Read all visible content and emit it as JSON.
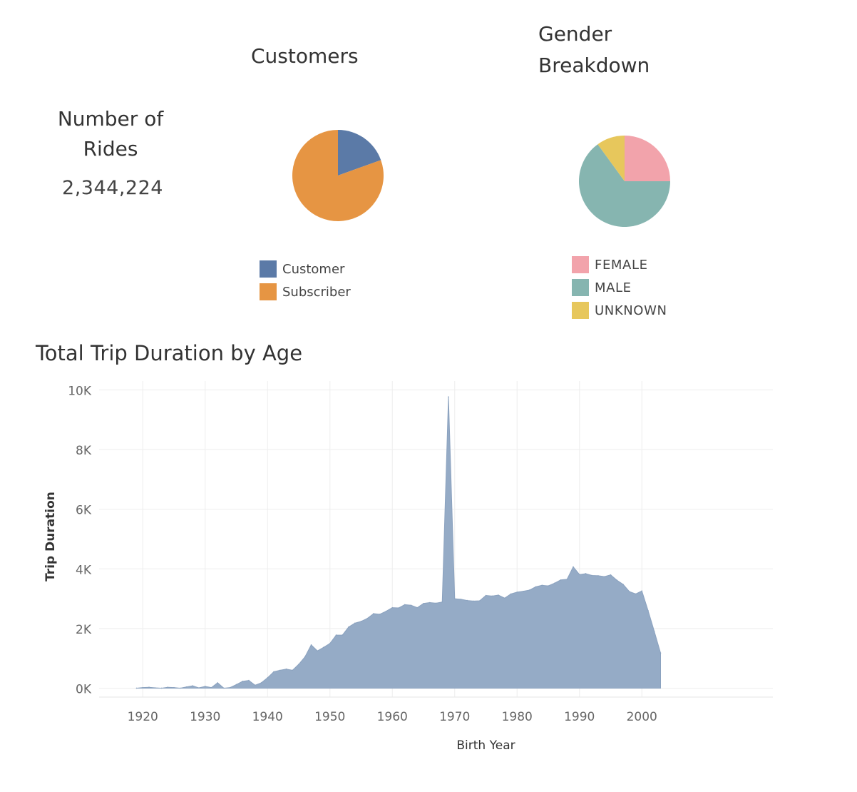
{
  "kpi": {
    "label": "Number of Rides",
    "value": "2,344,224"
  },
  "colors": {
    "customer": "#5b7aa7",
    "subscriber": "#e69543",
    "female": "#f2a3ab",
    "male": "#86b5b0",
    "unknown": "#e7c75c",
    "area": "#95abc6",
    "grid": "#eeeeee"
  },
  "chart_data": [
    {
      "type": "pie",
      "title": "Customers",
      "labels": [
        "Customer",
        "Subscriber"
      ],
      "values": [
        19.5,
        80.5
      ],
      "colors": [
        "#5b7aa7",
        "#e69543"
      ],
      "legend": "bottom"
    },
    {
      "type": "pie",
      "title": "Gender Breakdown",
      "labels": [
        "FEMALE",
        "MALE",
        "UNKNOWN"
      ],
      "values": [
        25,
        65,
        10
      ],
      "colors": [
        "#f2a3ab",
        "#86b5b0",
        "#e7c75c"
      ],
      "legend": "bottom"
    },
    {
      "type": "area",
      "title": "Total Trip Duration by Age",
      "xlabel": "Birth Year",
      "ylabel": "Trip Duration",
      "xlim": [
        1913,
        2021
      ],
      "ylim": [
        -300,
        10300
      ],
      "xticks": [
        1920,
        1930,
        1940,
        1950,
        1960,
        1970,
        1980,
        1990,
        2000
      ],
      "yticks": [
        {
          "v": 0,
          "label": "0K"
        },
        {
          "v": 2000,
          "label": "2K"
        },
        {
          "v": 4000,
          "label": "4K"
        },
        {
          "v": 6000,
          "label": "6K"
        },
        {
          "v": 8000,
          "label": "8K"
        },
        {
          "v": 10000,
          "label": "10K"
        }
      ],
      "grid": true,
      "x": [
        1919,
        1920,
        1921,
        1922,
        1923,
        1924,
        1925,
        1926,
        1927,
        1928,
        1929,
        1930,
        1931,
        1932,
        1933,
        1934,
        1935,
        1936,
        1937,
        1938,
        1939,
        1940,
        1941,
        1942,
        1943,
        1944,
        1945,
        1946,
        1947,
        1948,
        1949,
        1950,
        1951,
        1952,
        1953,
        1954,
        1955,
        1956,
        1957,
        1958,
        1959,
        1960,
        1961,
        1962,
        1963,
        1964,
        1965,
        1966,
        1967,
        1968,
        1969,
        1970,
        1971,
        1972,
        1973,
        1974,
        1975,
        1976,
        1977,
        1978,
        1979,
        1980,
        1981,
        1982,
        1983,
        1984,
        1985,
        1986,
        1987,
        1988,
        1989,
        1990,
        1991,
        1992,
        1993,
        1994,
        1995,
        1996,
        1997,
        1998,
        1999,
        2000,
        2001,
        2002,
        2003
      ],
      "values": [
        0,
        20,
        30,
        10,
        0,
        30,
        20,
        0,
        40,
        80,
        10,
        60,
        20,
        180,
        0,
        20,
        120,
        230,
        260,
        100,
        180,
        350,
        550,
        600,
        640,
        600,
        800,
        1050,
        1450,
        1250,
        1370,
        1500,
        1780,
        1780,
        2050,
        2180,
        2240,
        2340,
        2500,
        2480,
        2580,
        2700,
        2690,
        2800,
        2780,
        2700,
        2840,
        2870,
        2850,
        2890,
        9770,
        3000,
        2980,
        2940,
        2920,
        2930,
        3110,
        3090,
        3120,
        3020,
        3160,
        3220,
        3250,
        3290,
        3400,
        3450,
        3430,
        3520,
        3630,
        3650,
        4070,
        3810,
        3840,
        3780,
        3770,
        3740,
        3800,
        3620,
        3480,
        3240,
        3160,
        3260,
        2600,
        1900,
        1180
      ]
    }
  ]
}
